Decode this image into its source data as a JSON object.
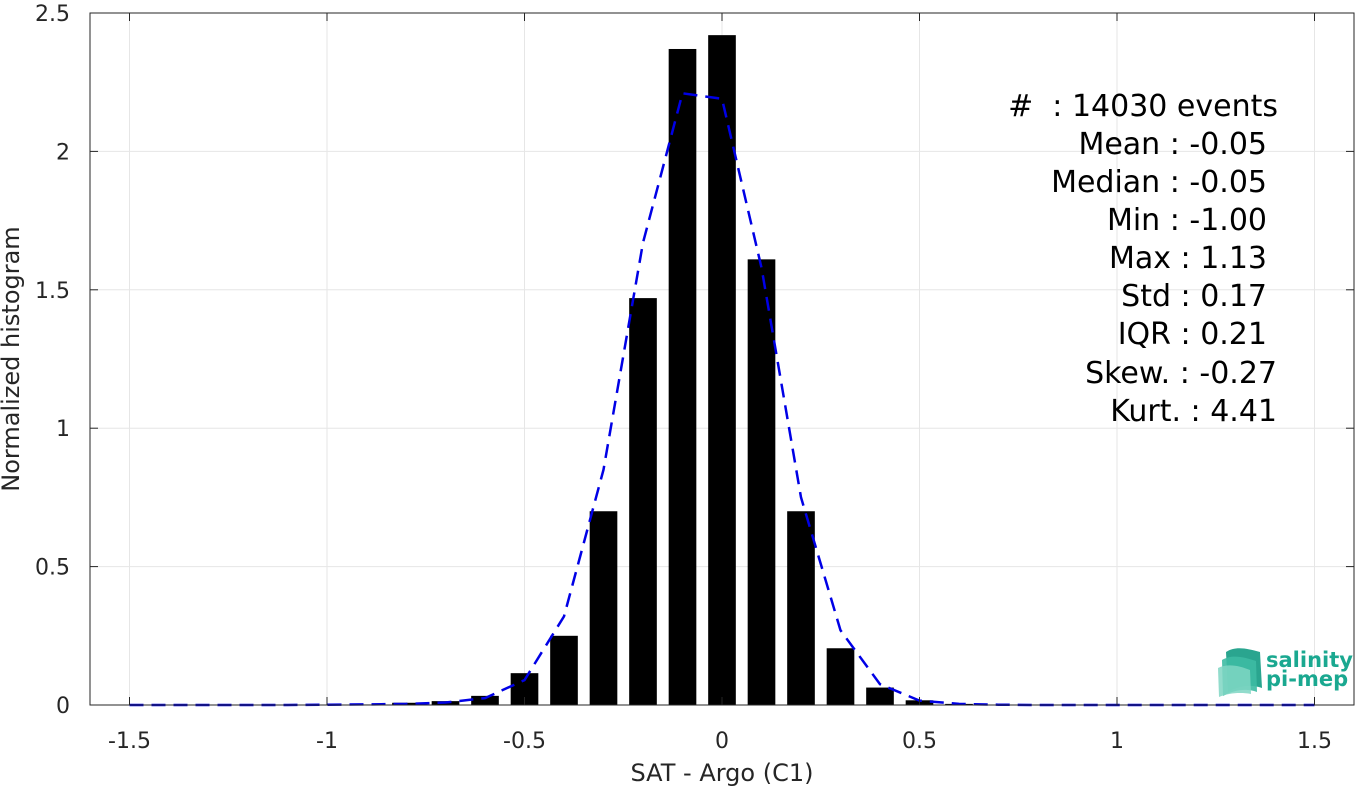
{
  "chart_data": {
    "type": "bar",
    "xlabel": "SAT - Argo (C1)",
    "ylabel": "Normalized histogram",
    "xlim": [
      -1.6,
      1.6
    ],
    "ylim": [
      0,
      2.5
    ],
    "xticks": [
      -1.5,
      -1,
      -0.5,
      0,
      0.5,
      1,
      1.5
    ],
    "xtick_labels": [
      "-1.5",
      "-1",
      "-0.5",
      "0",
      "0.5",
      "1",
      "1.5"
    ],
    "yticks": [
      0,
      0.5,
      1,
      1.5,
      2,
      2.5
    ],
    "ytick_labels": [
      "0",
      "0.5",
      "1",
      "1.5",
      "2",
      "2.5"
    ],
    "grid": true,
    "bar_width": 0.07,
    "bars": {
      "x": [
        -1.0,
        -0.9,
        -0.8,
        -0.7,
        -0.6,
        -0.5,
        -0.4,
        -0.3,
        -0.2,
        -0.1,
        0.0,
        0.1,
        0.2,
        0.3,
        0.4,
        0.5,
        0.6,
        0.7,
        0.8,
        0.9,
        1.0,
        1.1
      ],
      "values": [
        0.001,
        0.002,
        0.008,
        0.014,
        0.033,
        0.115,
        0.25,
        0.7,
        1.47,
        2.37,
        2.42,
        1.61,
        0.7,
        0.205,
        0.063,
        0.017,
        0.004,
        0.001,
        0.001,
        0.001,
        0.0005,
        0.0005
      ],
      "color": "#000000"
    },
    "fit_curve": {
      "style": "dashed",
      "color": "#0000e6",
      "x": [
        -1.5,
        -1.4,
        -1.3,
        -1.2,
        -1.1,
        -1.0,
        -0.9,
        -0.8,
        -0.7,
        -0.6,
        -0.5,
        -0.4,
        -0.3,
        -0.2,
        -0.1,
        0.0,
        0.1,
        0.2,
        0.3,
        0.4,
        0.5,
        0.6,
        0.7,
        0.8,
        0.9,
        1.0,
        1.1,
        1.2,
        1.3,
        1.4,
        1.5
      ],
      "y": [
        0,
        0,
        0,
        0,
        0,
        0.001,
        0.002,
        0.004,
        0.009,
        0.025,
        0.09,
        0.32,
        0.85,
        1.67,
        2.21,
        2.19,
        1.58,
        0.75,
        0.27,
        0.075,
        0.016,
        0.004,
        0.001,
        0,
        0,
        0,
        0,
        0,
        0,
        0,
        0
      ]
    },
    "stats": [
      "#  : 14030 events",
      "Mean : -0.05",
      "Median : -0.05",
      "Min : -1.00",
      "Max : 1.13",
      "Std : 0.17",
      "IQR : 0.21",
      "Skew. : -0.27",
      "Kurt. : 4.41"
    ]
  },
  "logo": {
    "line1": "salinity",
    "line2": "pi-mep"
  },
  "colors": {
    "bar": "#000000",
    "curve": "#0000e6",
    "grid": "#e6e6e6",
    "axis": "#262626",
    "logo": "#1aa890"
  }
}
